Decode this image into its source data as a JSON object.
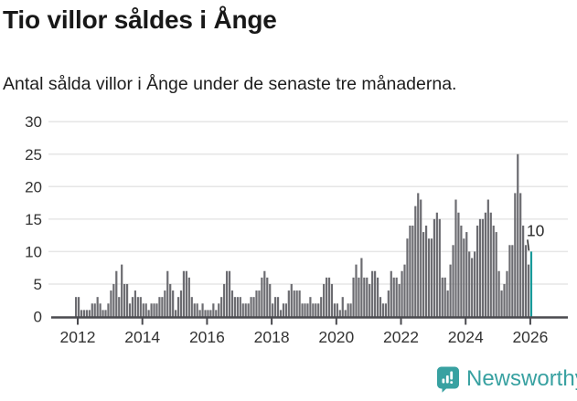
{
  "header": {
    "title": "Tio villor såldes i Ånge",
    "subtitle": "Antal sålda villor i Ånge under de senaste tre månaderna."
  },
  "chart_data": {
    "type": "bar",
    "title": "Tio villor såldes i Ånge",
    "subtitle": "Antal sålda villor i Ånge under de senaste tre månaderna.",
    "xlabel": "",
    "ylabel": "",
    "frequency": "monthly",
    "start_month": "2011-12",
    "end_month": "2026-01",
    "values": [
      3,
      3,
      1,
      1,
      1,
      1,
      2,
      2,
      3,
      2,
      1,
      1,
      2,
      4,
      5,
      7,
      3,
      8,
      5,
      5,
      2,
      3,
      4,
      3,
      3,
      2,
      2,
      1,
      2,
      2,
      2,
      3,
      3,
      4,
      7,
      5,
      4,
      1,
      3,
      4,
      7,
      7,
      6,
      3,
      2,
      2,
      1,
      2,
      1,
      1,
      1,
      2,
      1,
      2,
      3,
      5,
      7,
      7,
      4,
      3,
      3,
      3,
      2,
      2,
      2,
      3,
      3,
      4,
      4,
      6,
      7,
      6,
      5,
      2,
      3,
      3,
      1,
      2,
      2,
      4,
      5,
      4,
      4,
      4,
      2,
      2,
      2,
      3,
      2,
      2,
      2,
      3,
      5,
      6,
      6,
      5,
      2,
      2,
      1,
      3,
      1,
      2,
      2,
      6,
      8,
      6,
      9,
      6,
      6,
      5,
      7,
      7,
      6,
      3,
      2,
      2,
      4,
      7,
      6,
      6,
      5,
      7,
      8,
      12,
      14,
      14,
      17,
      19,
      18,
      13,
      14,
      12,
      12,
      15,
      16,
      15,
      6,
      6,
      4,
      8,
      11,
      18,
      16,
      14,
      12,
      13,
      10,
      9,
      10,
      14,
      15,
      15,
      16,
      18,
      16,
      14,
      13,
      7,
      4,
      5,
      7,
      11,
      11,
      19,
      25,
      19,
      14,
      11,
      8,
      10
    ],
    "highlight_last": true,
    "last_value_label": "10",
    "y_ticks": [
      0,
      5,
      10,
      15,
      20,
      25,
      30
    ],
    "ylim": [
      0,
      30
    ],
    "x_tick_years": [
      2012,
      2014,
      2016,
      2018,
      2020,
      2022,
      2024,
      2026
    ],
    "grid": true,
    "legend": "none",
    "bar_color": "#6c6c71",
    "highlight_color": "#189a9a",
    "grid_color": "#e6e6e6",
    "axis_color": "#4a4a4f",
    "tick_label_color": "#333333",
    "annotation_color": "#2b2b2b"
  },
  "footer": {
    "brand": "Newsworthy",
    "brand_color": "#38a1a1"
  }
}
